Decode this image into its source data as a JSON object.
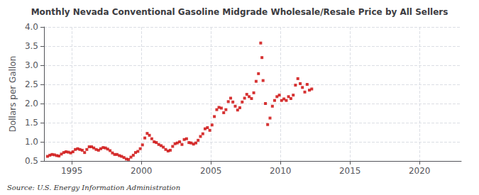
{
  "chart_data": {
    "type": "scatter",
    "title": "Monthly Nevada Conventional Gasoline Midgrade Wholesale/Resale Price by All Sellers",
    "ylabel": "Dollars per Gallon",
    "annotations": [
      "Source: U.S. Energy Information Administration"
    ],
    "color": "#cc0000",
    "marker": "square",
    "grid": true,
    "xlim": [
      1993,
      2023
    ],
    "ylim": [
      0.5,
      4.0
    ],
    "xticks": [
      1995,
      2000,
      2005,
      2010,
      2015,
      2020
    ],
    "yticks": [
      0.5,
      {
        "value": 1.0,
        "label": "1.0"
      },
      1.5,
      {
        "value": 2.0,
        "label": "2.0"
      },
      2.5,
      {
        "value": 3.0,
        "label": "3.0"
      },
      3.5,
      {
        "value": 4.0,
        "label": "4.0"
      }
    ],
    "x": [
      1993.25,
      1993.42,
      1993.58,
      1993.75,
      1993.92,
      1994.08,
      1994.25,
      1994.42,
      1994.58,
      1994.75,
      1994.92,
      1995.08,
      1995.25,
      1995.42,
      1995.58,
      1995.75,
      1995.92,
      1996.08,
      1996.25,
      1996.42,
      1996.58,
      1996.75,
      1996.92,
      1997.08,
      1997.25,
      1997.42,
      1997.58,
      1997.75,
      1997.92,
      1998.08,
      1998.25,
      1998.42,
      1998.58,
      1998.75,
      1998.92,
      1999.08,
      1999.25,
      1999.42,
      1999.58,
      1999.75,
      1999.92,
      2000.08,
      2000.25,
      2000.42,
      2000.58,
      2000.75,
      2000.92,
      2001.08,
      2001.25,
      2001.42,
      2001.58,
      2001.75,
      2001.92,
      2002.08,
      2002.25,
      2002.42,
      2002.58,
      2002.75,
      2002.92,
      2003.08,
      2003.25,
      2003.42,
      2003.58,
      2003.75,
      2003.92,
      2004.08,
      2004.25,
      2004.42,
      2004.58,
      2004.75,
      2004.92,
      2005.08,
      2005.25,
      2005.42,
      2005.58,
      2005.75,
      2005.92,
      2006.08,
      2006.25,
      2006.42,
      2006.58,
      2006.75,
      2006.92,
      2007.08,
      2007.25,
      2007.42,
      2007.58,
      2007.75,
      2007.92,
      2008.08,
      2008.25,
      2008.42,
      2008.58,
      2008.67,
      2008.75,
      2008.92,
      2009.08,
      2009.25,
      2009.42,
      2009.58,
      2009.75,
      2009.92,
      2010.08,
      2010.25,
      2010.42,
      2010.58,
      2010.75,
      2010.92,
      2011.08,
      2011.25,
      2011.42,
      2011.58,
      2011.75,
      2011.92,
      2012.08,
      2012.25
    ],
    "values": [
      0.62,
      0.65,
      0.67,
      0.66,
      0.64,
      0.63,
      0.68,
      0.72,
      0.74,
      0.73,
      0.71,
      0.74,
      0.8,
      0.82,
      0.8,
      0.78,
      0.72,
      0.8,
      0.87,
      0.87,
      0.84,
      0.8,
      0.78,
      0.82,
      0.85,
      0.84,
      0.81,
      0.77,
      0.71,
      0.67,
      0.67,
      0.64,
      0.62,
      0.59,
      0.55,
      0.54,
      0.6,
      0.65,
      0.72,
      0.75,
      0.82,
      0.92,
      1.1,
      1.22,
      1.17,
      1.08,
      1.0,
      0.98,
      0.93,
      0.9,
      0.86,
      0.8,
      0.76,
      0.78,
      0.88,
      0.95,
      0.97,
      1.0,
      0.93,
      1.06,
      1.08,
      0.98,
      0.97,
      0.94,
      0.97,
      1.04,
      1.14,
      1.21,
      1.34,
      1.37,
      1.3,
      1.44,
      1.66,
      1.84,
      1.9,
      1.88,
      1.76,
      1.84,
      2.05,
      2.14,
      2.04,
      1.93,
      1.83,
      1.89,
      2.04,
      2.14,
      2.24,
      2.18,
      2.13,
      2.28,
      2.58,
      2.78,
      3.58,
      3.2,
      2.6,
      2.0,
      1.45,
      1.62,
      1.93,
      2.08,
      2.18,
      2.22,
      2.08,
      2.12,
      2.08,
      2.18,
      2.13,
      2.22,
      2.48,
      2.65,
      2.52,
      2.42,
      2.3,
      2.5,
      2.35,
      2.38
    ]
  }
}
